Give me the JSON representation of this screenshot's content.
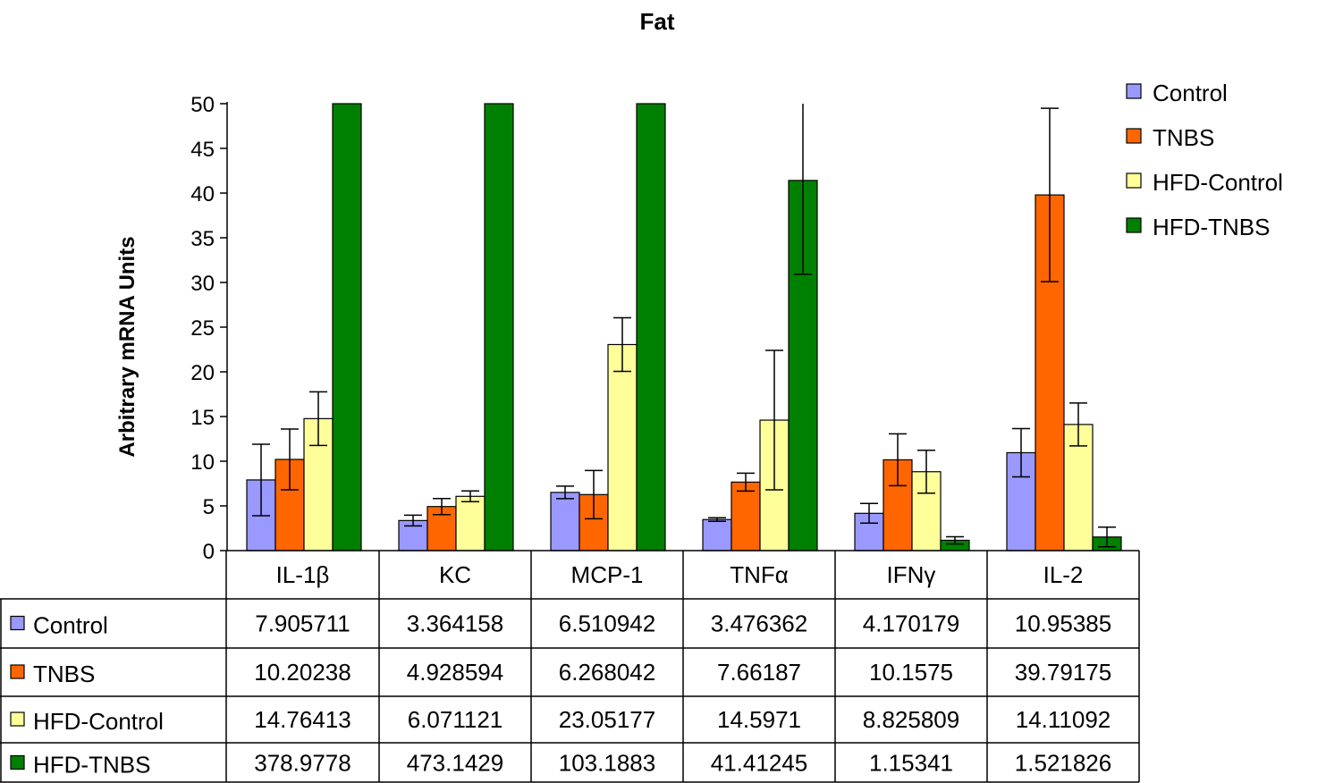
{
  "chart_data": {
    "type": "bar",
    "title": "Fat",
    "ylabel": "Arbitrary mRNA Units",
    "xlabel": "",
    "ylim": [
      0,
      50
    ],
    "yticks": [
      0,
      5,
      10,
      15,
      20,
      25,
      30,
      35,
      40,
      45,
      50
    ],
    "grid": false,
    "legend_position": "top-right",
    "categories": [
      "IL-1β",
      "KC",
      "MCP-1",
      "TNFα",
      "IFNγ",
      "IL-2"
    ],
    "series": [
      {
        "name": "Control",
        "color": "#9999ff",
        "values": [
          7.905711,
          3.364158,
          6.510942,
          3.476362,
          4.170179,
          10.95385
        ],
        "value_labels": [
          "7.905711",
          "3.364158",
          "6.510942",
          "3.476362",
          "4.170179",
          "10.95385"
        ],
        "error": [
          4.0,
          0.6,
          0.7,
          0.2,
          1.1,
          2.7
        ]
      },
      {
        "name": "TNBS",
        "color": "#ff6600",
        "values": [
          10.20238,
          4.928594,
          6.268042,
          7.66187,
          10.1575,
          39.79175
        ],
        "value_labels": [
          "10.20238",
          "4.928594",
          "6.268042",
          "7.66187",
          "10.1575",
          "39.79175"
        ],
        "error": [
          3.4,
          0.9,
          2.7,
          1.0,
          2.9,
          9.7
        ]
      },
      {
        "name": "HFD-Control",
        "color": "#ffff99",
        "values": [
          14.76413,
          6.071121,
          23.05177,
          14.5971,
          8.825809,
          14.11092
        ],
        "value_labels": [
          "14.76413",
          "6.071121",
          "23.05177",
          "14.5971",
          "8.825809",
          "14.11092"
        ],
        "error": [
          3.0,
          0.6,
          3.0,
          7.8,
          2.4,
          2.4
        ]
      },
      {
        "name": "HFD-TNBS",
        "color": "#008000",
        "values": [
          378.9778,
          473.1429,
          103.1883,
          41.41245,
          1.15341,
          1.521826
        ],
        "value_labels": [
          "378.9778",
          "473.1429",
          "103.1883",
          "41.41245",
          "1.15341",
          "1.521826"
        ],
        "error": [
          0,
          0,
          0,
          10.5,
          0.4,
          1.1
        ]
      }
    ]
  }
}
